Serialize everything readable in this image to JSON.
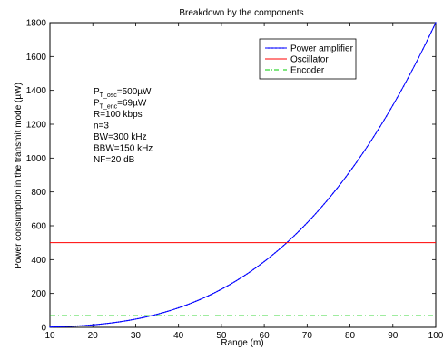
{
  "chart_data": {
    "type": "line",
    "title": "Breakdown by the components",
    "xlabel": "Range (m)",
    "ylabel": "Power consumption in the transmit mode (µW)",
    "xlim": [
      10,
      100
    ],
    "ylim": [
      0,
      1800
    ],
    "xticks": [
      10,
      20,
      30,
      40,
      50,
      60,
      70,
      80,
      90,
      100
    ],
    "yticks": [
      0,
      200,
      400,
      600,
      800,
      1000,
      1200,
      1400,
      1600,
      1800
    ],
    "grid": false,
    "legend_position": "top-right",
    "series": [
      {
        "name": "Power amplifier",
        "color": "#0000ff",
        "style": "solid-dot",
        "x": [
          10,
          15,
          20,
          25,
          30,
          35,
          40,
          45,
          50,
          55,
          60,
          65,
          70,
          75,
          80,
          85,
          90,
          95,
          100
        ],
        "y": [
          1.8,
          6.1,
          14.4,
          28.1,
          48.6,
          77.2,
          115.2,
          164.0,
          225.0,
          299.5,
          388.8,
          494.3,
          617.4,
          759.4,
          921.6,
          1105.4,
          1312.2,
          1543.3,
          1800.0
        ]
      },
      {
        "name": "Oscillator",
        "color": "#ff0000",
        "style": "solid",
        "x": [
          10,
          100
        ],
        "y": [
          500,
          500
        ]
      },
      {
        "name": "Encoder",
        "color": "#00cc00",
        "style": "dash-dot",
        "x": [
          10,
          100
        ],
        "y": [
          69,
          69
        ]
      }
    ],
    "annotations": [
      {
        "main": "P",
        "sub": "T_osc",
        "rest": "=500µW"
      },
      {
        "main": "P",
        "sub": "T_enc",
        "rest": "=69µW"
      },
      {
        "main": "R=100 kbps",
        "sub": "",
        "rest": ""
      },
      {
        "main": "n=3",
        "sub": "",
        "rest": ""
      },
      {
        "main": "BW=300 kHz",
        "sub": "",
        "rest": ""
      },
      {
        "main": "BBW=150 kHz",
        "sub": "",
        "rest": ""
      },
      {
        "main": "NF=20 dB",
        "sub": "",
        "rest": ""
      }
    ]
  }
}
